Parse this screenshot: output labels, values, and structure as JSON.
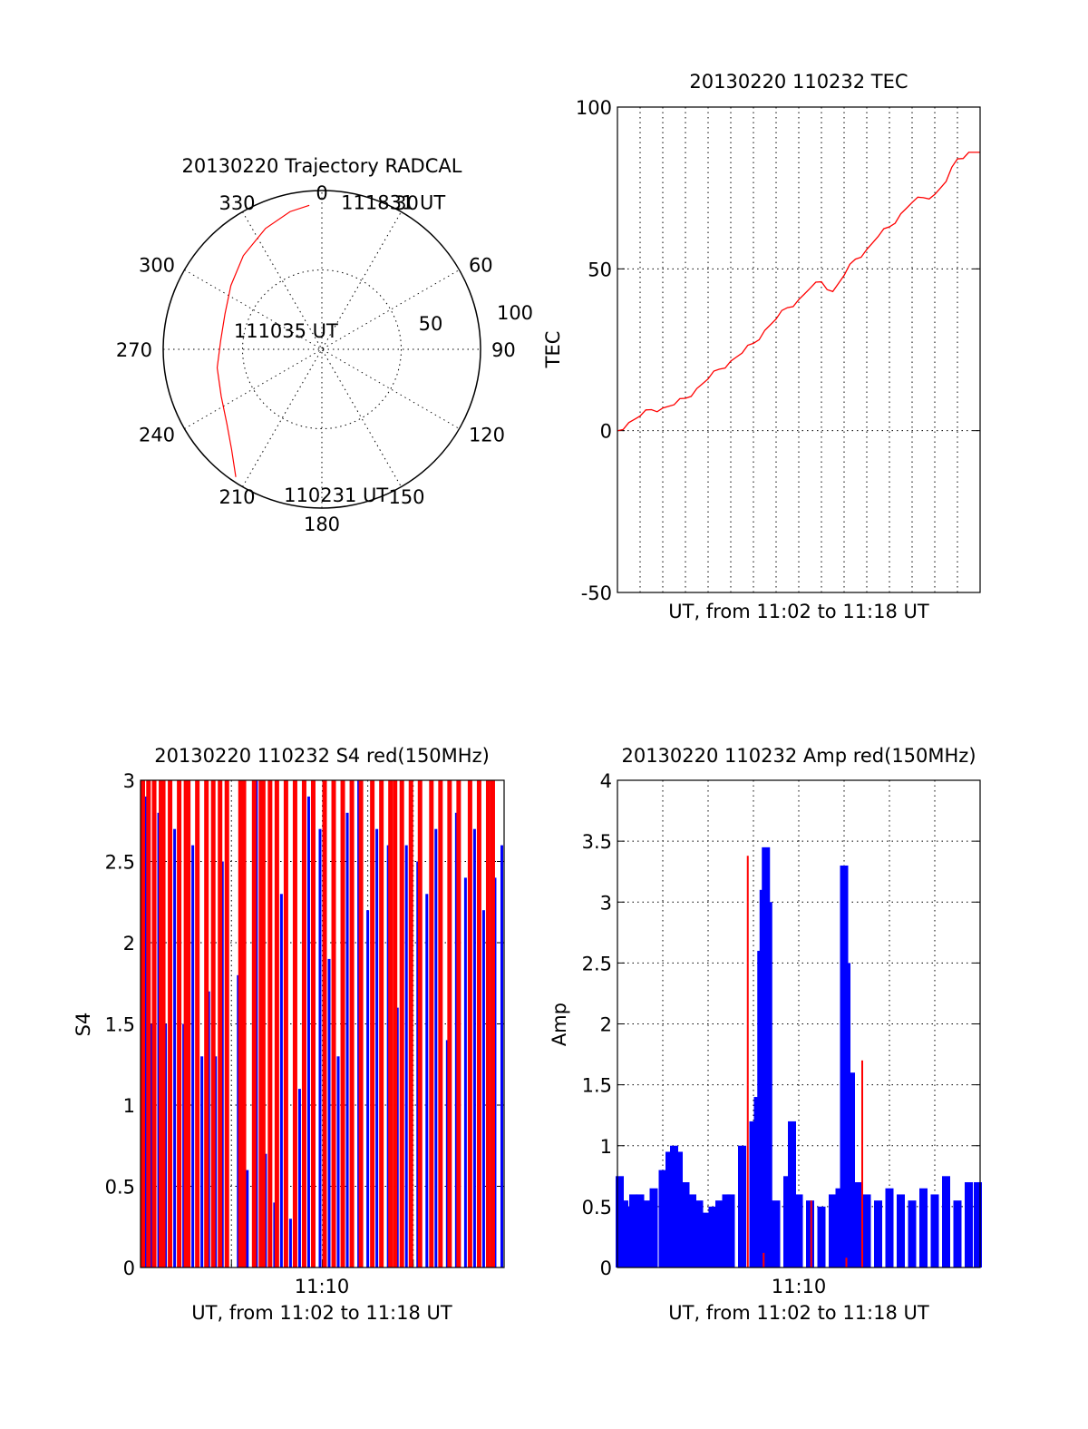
{
  "colors": {
    "red": "#ff0000",
    "blue": "#0000ff",
    "axis": "#000000"
  },
  "chart_data": [
    {
      "id": "polar",
      "type": "scatter",
      "projection": "polar",
      "title": "20130220 Trajectory RADCAL",
      "angle_labels": [
        "0",
        "30",
        "60",
        "90",
        "120",
        "150",
        "180",
        "210",
        "240",
        "270",
        "300",
        "330"
      ],
      "radius_labels": [
        "50",
        "100"
      ],
      "rmax": 100,
      "track": {
        "series_color": "red",
        "points": [
          {
            "azimuth": 214,
            "radius": 97
          },
          {
            "azimuth": 222,
            "radius": 85
          },
          {
            "azimuth": 232,
            "radius": 76
          },
          {
            "azimuth": 245,
            "radius": 70
          },
          {
            "azimuth": 260,
            "radius": 67
          },
          {
            "azimuth": 275,
            "radius": 64
          },
          {
            "azimuth": 290,
            "radius": 65
          },
          {
            "azimuth": 305,
            "radius": 70
          },
          {
            "azimuth": 320,
            "radius": 77
          },
          {
            "azimuth": 335,
            "radius": 84
          },
          {
            "azimuth": 347,
            "radius": 89
          },
          {
            "azimuth": 355,
            "radius": 91
          }
        ]
      },
      "annotations": [
        {
          "text": "111831 UT",
          "azimuth": 8,
          "radius": 95
        },
        {
          "text": "111035 UT",
          "azimuth": 307,
          "radius": 18
        },
        {
          "text": "110231 UT",
          "azimuth": 196,
          "radius": 95
        }
      ]
    },
    {
      "id": "tec",
      "type": "line",
      "title": "20130220 110232 TEC",
      "xlabel": "UT, from 11:02 to 11:18 UT",
      "ylabel": "TEC",
      "xlim": [
        0,
        16
      ],
      "ylim": [
        -50,
        100
      ],
      "yticks": [
        "100",
        "50",
        "0",
        "-50"
      ],
      "grid": true,
      "series_color": "red",
      "x": [
        0,
        0.5,
        1,
        1.5,
        2,
        2.5,
        3,
        3.5,
        4,
        4.5,
        5,
        5.5,
        6,
        6.5,
        7,
        7.5,
        8,
        8.5,
        9,
        9.5,
        10,
        10.5,
        11,
        11.5,
        12,
        12.5,
        13,
        13.5,
        14,
        14.5,
        15,
        15.5,
        16
      ],
      "values": [
        0,
        2.5,
        4.5,
        6.5,
        7,
        8,
        10,
        13,
        16,
        19,
        21.5,
        24,
        27,
        31,
        34.5,
        38,
        40.5,
        44,
        46,
        43,
        48,
        53,
        56,
        60,
        63,
        67,
        70.5,
        72,
        73,
        77,
        84,
        86,
        86
      ]
    },
    {
      "id": "s4",
      "type": "bar",
      "title": "20130220 110232 S4 red(150MHz)",
      "xlabel": "UT, from 11:02 to 11:18 UT",
      "ylabel": "S4",
      "xlim": [
        0,
        16
      ],
      "ylim": [
        0,
        3
      ],
      "xticks": [
        "11:10"
      ],
      "yticks": [
        "3",
        "2.5",
        "2",
        "1.5",
        "1",
        "0.5",
        "0"
      ],
      "grid": true,
      "series": [
        {
          "color": "blue",
          "x": [
            0.05,
            0.25,
            0.5,
            0.8,
            1.1,
            1.5,
            1.9,
            2.3,
            2.7,
            3.0,
            3.3,
            3.6,
            4.3,
            4.7,
            5.1,
            5.5,
            5.9,
            6.2,
            6.6,
            7.0,
            7.4,
            7.9,
            8.3,
            8.7,
            9.1,
            9.6,
            10.0,
            10.4,
            10.9,
            11.3,
            11.7,
            12.2,
            12.6,
            13.0,
            13.5,
            13.9,
            14.3,
            14.7,
            15.1,
            15.6,
            15.9
          ],
          "values": [
            2.6,
            2.9,
            1.5,
            2.8,
            1.5,
            2.7,
            1.5,
            2.6,
            1.3,
            1.7,
            1.3,
            2.5,
            1.8,
            0.6,
            3.0,
            0.7,
            0.4,
            2.3,
            0.3,
            1.1,
            2.9,
            2.7,
            1.9,
            1.3,
            2.8,
            3.0,
            2.2,
            2.7,
            2.6,
            1.6,
            2.6,
            2.5,
            2.3,
            2.7,
            1.4,
            2.8,
            2.4,
            2.7,
            2.2,
            2.4,
            2.6
          ]
        },
        {
          "color": "red",
          "x": [
            0.1,
            0.35,
            0.6,
            0.9,
            1.0,
            1.3,
            1.7,
            2.0,
            2.1,
            2.5,
            2.9,
            3.2,
            3.5,
            3.8,
            4.4,
            4.55,
            5.0,
            5.3,
            5.4,
            5.7,
            6.0,
            6.4,
            6.8,
            7.2,
            7.6,
            8.1,
            8.5,
            8.9,
            9.3,
            9.7,
            10.2,
            10.6,
            11.0,
            11.2,
            11.5,
            11.9,
            12.3,
            12.8,
            13.2,
            13.6,
            14.0,
            14.5,
            14.9,
            15.3,
            15.5
          ],
          "values": [
            3,
            3,
            3,
            3,
            3,
            3,
            3,
            3,
            3,
            3,
            3,
            3,
            3,
            3,
            3,
            3,
            3,
            3,
            3,
            3,
            3,
            3,
            3,
            3,
            3,
            3,
            3,
            3,
            3,
            3,
            3,
            3,
            3,
            3,
            3,
            3,
            3,
            3,
            3,
            3,
            3,
            3,
            3,
            3,
            3
          ]
        }
      ]
    },
    {
      "id": "amp",
      "type": "bar",
      "title": "20130220 110232 Amp red(150MHz)",
      "xlabel": "UT, from 11:02 to 11:18 UT",
      "ylabel": "Amp",
      "xlim": [
        0,
        16
      ],
      "ylim": [
        0,
        4
      ],
      "xticks": [
        "11:10"
      ],
      "yticks": [
        "4",
        "3.5",
        "3",
        "2.5",
        "2",
        "1.5",
        "1",
        "0.5",
        "0"
      ],
      "grid": true,
      "series": [
        {
          "color": "blue",
          "x": [
            0.1,
            0.3,
            0.5,
            0.7,
            1.0,
            1.3,
            1.6,
            2.0,
            2.3,
            2.5,
            2.7,
            3.0,
            3.3,
            3.6,
            3.9,
            4.2,
            4.5,
            4.8,
            5.0,
            5.5,
            6.0,
            6.2,
            6.35,
            6.45,
            6.55,
            6.65,
            6.8,
            7.0,
            7.5,
            7.7,
            8.0,
            8.5,
            9.0,
            9.5,
            9.8,
            10.0,
            10.1,
            10.3,
            10.6,
            11.0,
            11.5,
            12.0,
            12.5,
            13.0,
            13.5,
            14.0,
            14.5,
            15.0,
            15.5,
            15.9
          ],
          "values": [
            0.75,
            0.55,
            0.5,
            0.6,
            0.6,
            0.55,
            0.65,
            0.8,
            0.95,
            1.0,
            0.95,
            0.7,
            0.6,
            0.55,
            0.45,
            0.5,
            0.55,
            0.6,
            0.6,
            1.0,
            1.2,
            1.4,
            2.6,
            3.1,
            3.45,
            3.0,
            0.4,
            0.55,
            0.75,
            1.2,
            0.6,
            0.55,
            0.5,
            0.6,
            0.65,
            3.3,
            2.5,
            1.6,
            0.7,
            0.6,
            0.55,
            0.65,
            0.6,
            0.55,
            0.65,
            0.6,
            0.75,
            0.55,
            0.7,
            0.7
          ]
        },
        {
          "color": "red",
          "x": [
            5.75,
            6.45,
            8.55,
            10.1,
            10.8
          ],
          "values": [
            3.38,
            0.12,
            0.55,
            0.08,
            1.7
          ]
        }
      ]
    }
  ]
}
